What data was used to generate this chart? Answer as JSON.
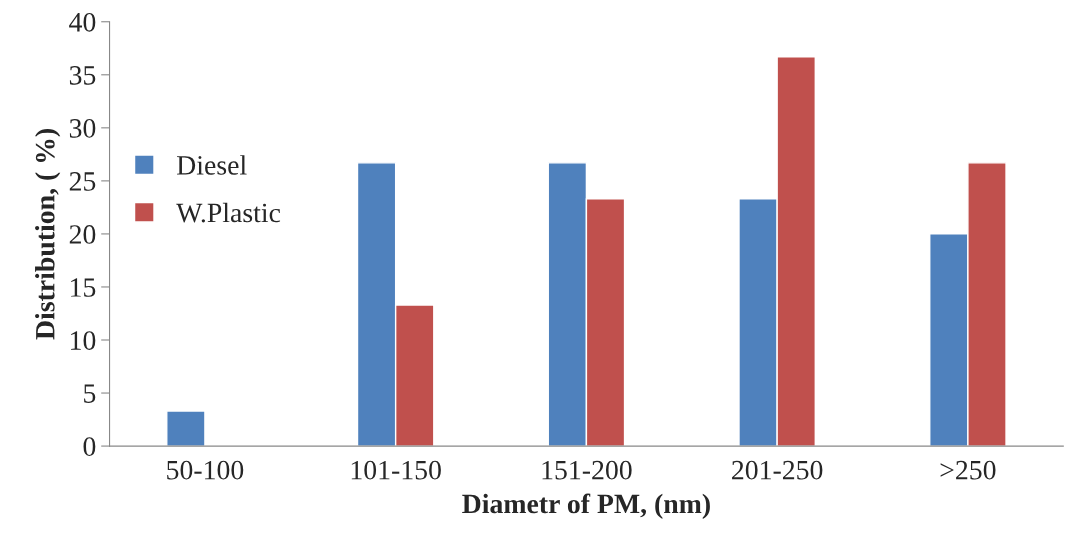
{
  "chart_data": {
    "type": "bar",
    "xlabel": "Diametr of PM, (nm)",
    "ylabel": "Distribution, ( %)",
    "categories": [
      "50-100",
      "101-150",
      "151-200",
      "201-250",
      ">250"
    ],
    "series": [
      {
        "name": "Diesel",
        "color": "#4f81bd",
        "values": [
          3.3,
          26.7,
          26.7,
          23.3,
          20
        ]
      },
      {
        "name": "W.Plastic",
        "color": "#c0504d",
        "values": [
          null,
          13.3,
          23.3,
          36.7,
          26.7
        ]
      }
    ],
    "ylim": [
      0,
      40
    ],
    "yticks": [
      0,
      5,
      10,
      15,
      20,
      25,
      30,
      35,
      40
    ],
    "grid": false,
    "legend": "left"
  }
}
